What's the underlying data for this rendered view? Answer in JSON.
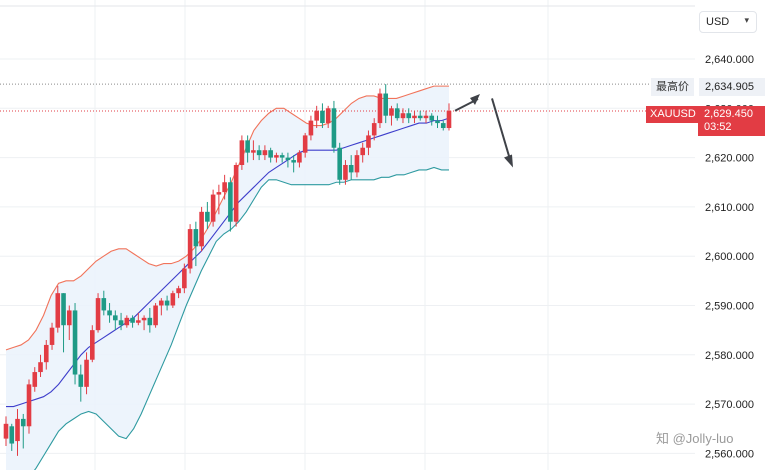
{
  "currency": {
    "selected": "USD",
    "chevron_icon": "chevron-down-icon"
  },
  "high_label": "最高价",
  "high_price": "2,634.905",
  "symbol": "XAUUSD",
  "last_price": "2,629.450",
  "countdown": "03:52",
  "watermark": "知 @Jolly-luo",
  "colors": {
    "up": "#e23c44",
    "down": "#1e9a86",
    "upper_band": "#f1735a",
    "lower_band": "#2e9aa0",
    "middle_band": "#3e3ecb",
    "band_fill": "#eaf2fb"
  },
  "chart_data": {
    "type": "candlestick",
    "title": "",
    "xlabel": "",
    "ylabel": "",
    "ylim": [
      2558,
      2644
    ],
    "y_ticks": [
      "2,640.000",
      "2,630.000",
      "2,620.000",
      "2,610.000",
      "2,600.000",
      "2,590.000",
      "2,580.000",
      "2,570.000",
      "2,560.000"
    ],
    "grid": true,
    "reference_lines": [
      {
        "name": "high",
        "value": 2634.905,
        "style": "dotted"
      },
      {
        "name": "last",
        "value": 2629.45,
        "style": "dotted"
      }
    ],
    "candles": [
      [
        2563.0,
        2567.5,
        2561.5,
        2566.0
      ],
      [
        2565.5,
        2566.0,
        2560.5,
        2562.0
      ],
      [
        2562.5,
        2569.0,
        2559.5,
        2567.0
      ],
      [
        2567.0,
        2568.0,
        2561.0,
        2565.5
      ],
      [
        2565.5,
        2575.0,
        2564.0,
        2574.0
      ],
      [
        2573.5,
        2577.5,
        2572.5,
        2576.5
      ],
      [
        2576.5,
        2580.0,
        2575.5,
        2578.5
      ],
      [
        2578.5,
        2583.0,
        2577.0,
        2582.0
      ],
      [
        2582.0,
        2586.5,
        2581.0,
        2585.5
      ],
      [
        2585.5,
        2594.0,
        2584.5,
        2592.5
      ],
      [
        2592.5,
        2592.5,
        2580.5,
        2586.0
      ],
      [
        2586.0,
        2590.0,
        2583.0,
        2589.0
      ],
      [
        2589.0,
        2590.5,
        2574.0,
        2576.0
      ],
      [
        2576.0,
        2578.0,
        2570.5,
        2573.5
      ],
      [
        2573.5,
        2580.5,
        2572.0,
        2579.0
      ],
      [
        2579.0,
        2586.0,
        2578.5,
        2585.0
      ],
      [
        2585.0,
        2592.5,
        2584.5,
        2591.5
      ],
      [
        2591.5,
        2593.0,
        2588.0,
        2589.0
      ],
      [
        2589.0,
        2590.5,
        2586.5,
        2588.0
      ],
      [
        2588.0,
        2589.0,
        2585.0,
        2587.0
      ],
      [
        2587.0,
        2588.5,
        2585.0,
        2586.0
      ],
      [
        2586.0,
        2588.0,
        2585.5,
        2587.5
      ],
      [
        2587.5,
        2588.0,
        2585.5,
        2586.5
      ],
      [
        2586.5,
        2588.5,
        2586.0,
        2587.0
      ],
      [
        2587.0,
        2588.0,
        2585.0,
        2587.5
      ],
      [
        2587.5,
        2589.5,
        2584.5,
        2586.0
      ],
      [
        2586.0,
        2590.5,
        2585.5,
        2590.0
      ],
      [
        2590.0,
        2591.5,
        2588.0,
        2591.0
      ],
      [
        2591.0,
        2592.0,
        2589.0,
        2590.0
      ],
      [
        2590.0,
        2593.0,
        2589.5,
        2592.5
      ],
      [
        2592.5,
        2594.0,
        2591.5,
        2593.5
      ],
      [
        2593.5,
        2598.5,
        2592.5,
        2597.5
      ],
      [
        2597.5,
        2606.5,
        2596.5,
        2605.5
      ],
      [
        2605.5,
        2607.0,
        2598.0,
        2602.0
      ],
      [
        2602.0,
        2610.0,
        2601.0,
        2609.0
      ],
      [
        2609.0,
        2611.0,
        2605.5,
        2607.0
      ],
      [
        2607.0,
        2613.5,
        2606.0,
        2612.5
      ],
      [
        2612.5,
        2614.5,
        2608.5,
        2613.0
      ],
      [
        2613.0,
        2616.5,
        2611.5,
        2615.0
      ],
      [
        2615.0,
        2616.0,
        2605.0,
        2607.0
      ],
      [
        2607.0,
        2619.0,
        2606.0,
        2618.5
      ],
      [
        2618.5,
        2624.5,
        2617.5,
        2623.5
      ],
      [
        2623.5,
        2624.5,
        2619.0,
        2621.0
      ],
      [
        2621.0,
        2623.5,
        2619.5,
        2621.5
      ],
      [
        2621.5,
        2622.5,
        2619.5,
        2620.5
      ],
      [
        2620.5,
        2622.5,
        2619.5,
        2621.5
      ],
      [
        2621.5,
        2622.0,
        2619.0,
        2620.0
      ],
      [
        2620.0,
        2621.0,
        2619.0,
        2620.5
      ],
      [
        2620.5,
        2621.0,
        2619.0,
        2620.0
      ],
      [
        2620.0,
        2621.0,
        2618.0,
        2619.5
      ],
      [
        2619.5,
        2620.5,
        2617.0,
        2619.0
      ],
      [
        2619.0,
        2621.5,
        2618.0,
        2621.0
      ],
      [
        2621.0,
        2625.0,
        2620.0,
        2624.5
      ],
      [
        2624.5,
        2628.5,
        2623.5,
        2627.5
      ],
      [
        2627.5,
        2630.5,
        2626.0,
        2629.5
      ],
      [
        2629.5,
        2631.0,
        2626.0,
        2627.0
      ],
      [
        2627.0,
        2630.5,
        2626.0,
        2630.0
      ],
      [
        2630.0,
        2631.5,
        2621.0,
        2622.0
      ],
      [
        2622.0,
        2623.0,
        2614.5,
        2615.5
      ],
      [
        2615.5,
        2619.5,
        2614.5,
        2618.5
      ],
      [
        2618.5,
        2620.5,
        2615.5,
        2617.0
      ],
      [
        2617.0,
        2621.5,
        2616.0,
        2620.5
      ],
      [
        2620.5,
        2623.0,
        2619.0,
        2622.0
      ],
      [
        2622.0,
        2625.5,
        2620.5,
        2624.5
      ],
      [
        2624.5,
        2628.0,
        2623.5,
        2627.0
      ],
      [
        2627.0,
        2634.0,
        2626.0,
        2633.0
      ],
      [
        2633.0,
        2634.9,
        2627.0,
        2628.5
      ],
      [
        2628.5,
        2630.5,
        2626.5,
        2630.0
      ],
      [
        2630.0,
        2631.0,
        2627.5,
        2628.0
      ],
      [
        2628.0,
        2630.0,
        2627.0,
        2629.0
      ],
      [
        2629.0,
        2630.0,
        2627.0,
        2628.0
      ],
      [
        2628.0,
        2629.5,
        2627.0,
        2628.5
      ],
      [
        2628.5,
        2629.5,
        2627.5,
        2628.0
      ],
      [
        2628.0,
        2629.5,
        2627.0,
        2628.5
      ],
      [
        2628.5,
        2629.0,
        2626.5,
        2627.5
      ],
      [
        2627.5,
        2628.5,
        2626.0,
        2627.0
      ],
      [
        2627.0,
        2627.5,
        2625.5,
        2626.0
      ],
      [
        2626.0,
        2631.0,
        2625.5,
        2629.5
      ]
    ],
    "bands": {
      "upper": [
        2581.0,
        2581.5,
        2582.0,
        2583.0,
        2585.0,
        2588.0,
        2592.0,
        2594.5,
        2595.0,
        2595.0,
        2596.0,
        2597.5,
        2599.0,
        2600.0,
        2601.0,
        2601.5,
        2601.5,
        2600.5,
        2599.5,
        2598.5,
        2598.0,
        2598.5,
        2598.5,
        2599.0,
        2600.0,
        2601.5,
        2603.5,
        2606.0,
        2609.0,
        2612.0,
        2615.0,
        2618.5,
        2622.0,
        2625.5,
        2627.5,
        2629.0,
        2630.0,
        2630.0,
        2629.0,
        2628.0,
        2627.0,
        2626.5,
        2626.5,
        2627.0,
        2628.0,
        2629.5,
        2631.0,
        2632.0,
        2632.5,
        2632.5,
        2632.0,
        2632.0,
        2632.0,
        2632.5,
        2633.0,
        2633.5,
        2634.0,
        2634.5,
        2634.5,
        2634.5
      ],
      "middle": [
        2569.5,
        2569.5,
        2570.0,
        2570.5,
        2571.0,
        2571.5,
        2572.5,
        2574.0,
        2576.0,
        2578.0,
        2580.0,
        2581.5,
        2582.5,
        2583.5,
        2584.5,
        2585.5,
        2586.5,
        2587.5,
        2589.0,
        2590.5,
        2592.0,
        2593.5,
        2595.0,
        2596.5,
        2598.0,
        2599.5,
        2601.0,
        2603.0,
        2605.0,
        2607.0,
        2609.0,
        2611.0,
        2612.5,
        2614.0,
        2615.5,
        2617.0,
        2618.0,
        2619.0,
        2620.0,
        2621.0,
        2621.5,
        2621.5,
        2621.5,
        2621.5,
        2621.5,
        2622.0,
        2622.5,
        2623.0,
        2623.5,
        2624.0,
        2624.5,
        2625.0,
        2625.5,
        2626.0,
        2626.5,
        2627.0,
        2627.0,
        2627.5,
        2627.5,
        2628.0
      ],
      "lower": [
        2552.0,
        2553.0,
        2554.0,
        2555.0,
        2557.0,
        2559.5,
        2562.0,
        2564.5,
        2566.0,
        2567.0,
        2568.0,
        2568.5,
        2568.0,
        2566.5,
        2565.0,
        2563.5,
        2563.0,
        2565.0,
        2568.0,
        2571.5,
        2575.0,
        2578.5,
        2582.0,
        2586.0,
        2590.0,
        2593.5,
        2597.0,
        2600.0,
        2603.0,
        2604.5,
        2605.5,
        2607.0,
        2609.0,
        2611.5,
        2614.0,
        2615.5,
        2615.5,
        2615.0,
        2614.5,
        2614.5,
        2614.5,
        2614.5,
        2614.5,
        2614.5,
        2615.0,
        2615.0,
        2615.5,
        2615.5,
        2615.5,
        2615.5,
        2616.0,
        2616.0,
        2616.5,
        2616.5,
        2617.0,
        2617.5,
        2617.5,
        2618.0,
        2617.5,
        2617.5
      ]
    },
    "annotations": [
      {
        "type": "arrow",
        "direction": "up",
        "from_value": 2629.5,
        "to_value": 2632.5
      },
      {
        "type": "arrow",
        "direction": "down",
        "from_value": 2632.0,
        "to_value": 2618.0
      }
    ]
  }
}
